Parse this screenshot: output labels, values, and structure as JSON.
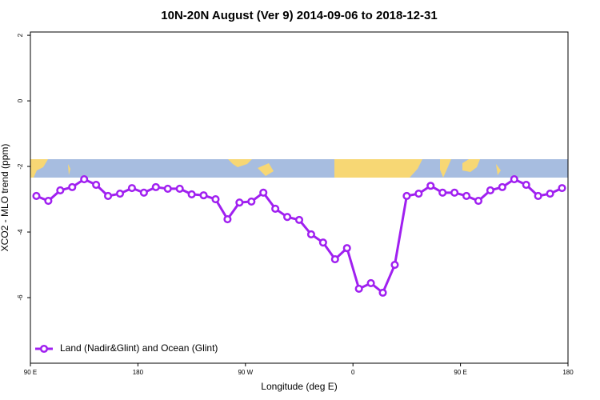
{
  "chart_data": {
    "type": "line",
    "title": "10N-20N August (Ver 9)   2014-09-06 to 2018-12-31",
    "x_label": "Longitude (deg E)",
    "y_label": "XCO2 - MLO trend (ppm)",
    "x": [
      95,
      105,
      115,
      125,
      135,
      145,
      155,
      165,
      175,
      185,
      195,
      205,
      215,
      225,
      235,
      245,
      255,
      265,
      275,
      285,
      295,
      305,
      315,
      325,
      335,
      345,
      355,
      365,
      375,
      385,
      395,
      405,
      415,
      425,
      435,
      445,
      455,
      465,
      475,
      485,
      495,
      505,
      515,
      525,
      535
    ],
    "series": [
      {
        "name": "Land (Nadir&Glint) and Ocean (Glint)",
        "color": "#a020f0",
        "values": [
          -2.9,
          -3.05,
          -2.73,
          -2.63,
          -2.39,
          -2.56,
          -2.9,
          -2.83,
          -2.66,
          -2.8,
          -2.63,
          -2.68,
          -2.68,
          -2.85,
          -2.88,
          -3.0,
          -3.61,
          -3.1,
          -3.07,
          -2.8,
          -3.29,
          -3.54,
          -3.63,
          -4.07,
          -4.32,
          -4.83,
          -4.49,
          -5.73,
          -5.56,
          -5.85,
          -5.0,
          -2.9,
          -2.83,
          -2.59,
          -2.8,
          -2.8,
          -2.9,
          -3.05,
          -2.73,
          -2.63,
          -2.39,
          -2.56,
          -2.9,
          -2.83,
          -2.66
        ]
      }
    ],
    "xlim": [
      90,
      540
    ],
    "ylim": [
      -8,
      2.1
    ],
    "xticks": [
      {
        "value": 90,
        "label": "90 E"
      },
      180,
      {
        "value": 270,
        "label": "90 W"
      },
      {
        "value": 360,
        "label": "0"
      },
      {
        "value": 450,
        "label": "90 E"
      },
      {
        "value": 540,
        "label": "180"
      }
    ],
    "yticks": [
      2,
      0,
      -2,
      -4,
      -6
    ],
    "legend": "bottom-left"
  }
}
